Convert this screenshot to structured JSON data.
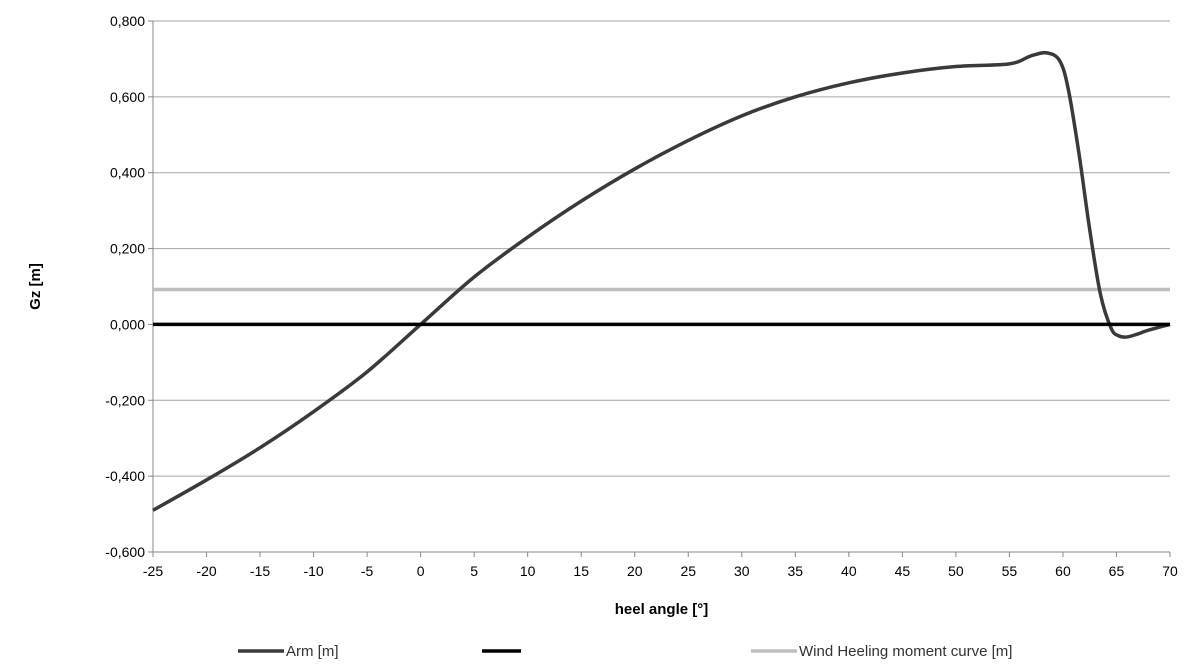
{
  "chart_data": {
    "type": "line",
    "title": "",
    "xlabel": "heel angle [°]",
    "ylabel": "Gz [m]",
    "xlim": [
      -25,
      70
    ],
    "ylim": [
      -0.6,
      0.8
    ],
    "x_ticks": [
      -25,
      -20,
      -15,
      -10,
      -5,
      0,
      5,
      10,
      15,
      20,
      25,
      30,
      35,
      40,
      45,
      50,
      55,
      60,
      65,
      70
    ],
    "x_tick_labels": [
      "-25",
      "-20",
      "-15",
      "-10",
      "-5",
      "0",
      "5",
      "10",
      "15",
      "20",
      "25",
      "30",
      "35",
      "40",
      "45",
      "50",
      "55",
      "60",
      "65",
      "70"
    ],
    "y_ticks": [
      -0.6,
      -0.4,
      -0.2,
      0.0,
      0.2,
      0.4,
      0.6,
      0.8
    ],
    "y_tick_labels": [
      "-0,600",
      "-0,400",
      "-0,200",
      "0,000",
      "0,200",
      "0,400",
      "0,600",
      "0,800"
    ],
    "grid": "horizontal",
    "legend_position": "bottom",
    "series": [
      {
        "name": "Arm [m]",
        "color": "#3a3a3a",
        "x": [
          -25,
          -20,
          -15,
          -10,
          -5,
          0,
          5,
          10,
          15,
          20,
          25,
          30,
          35,
          40,
          45,
          50,
          55,
          57,
          58.5,
          59.7,
          60.5,
          61.5,
          62.5,
          63.5,
          64.5,
          65.2,
          66,
          67,
          68,
          70
        ],
        "y": [
          -0.49,
          -0.41,
          -0.325,
          -0.23,
          -0.125,
          0.0,
          0.125,
          0.23,
          0.325,
          0.41,
          0.485,
          0.55,
          0.6,
          0.637,
          0.663,
          0.68,
          0.687,
          0.708,
          0.716,
          0.695,
          0.62,
          0.45,
          0.25,
          0.08,
          -0.01,
          -0.03,
          -0.033,
          -0.025,
          -0.015,
          0.0
        ]
      },
      {
        "name": "",
        "color": "#000000",
        "x": [
          -25,
          70
        ],
        "y": [
          0.0,
          0.0
        ]
      },
      {
        "name": "Wind Heeling moment curve [m]",
        "color": "#bfbfbf",
        "x": [
          -25,
          70
        ],
        "y": [
          0.092,
          0.092
        ]
      }
    ]
  }
}
